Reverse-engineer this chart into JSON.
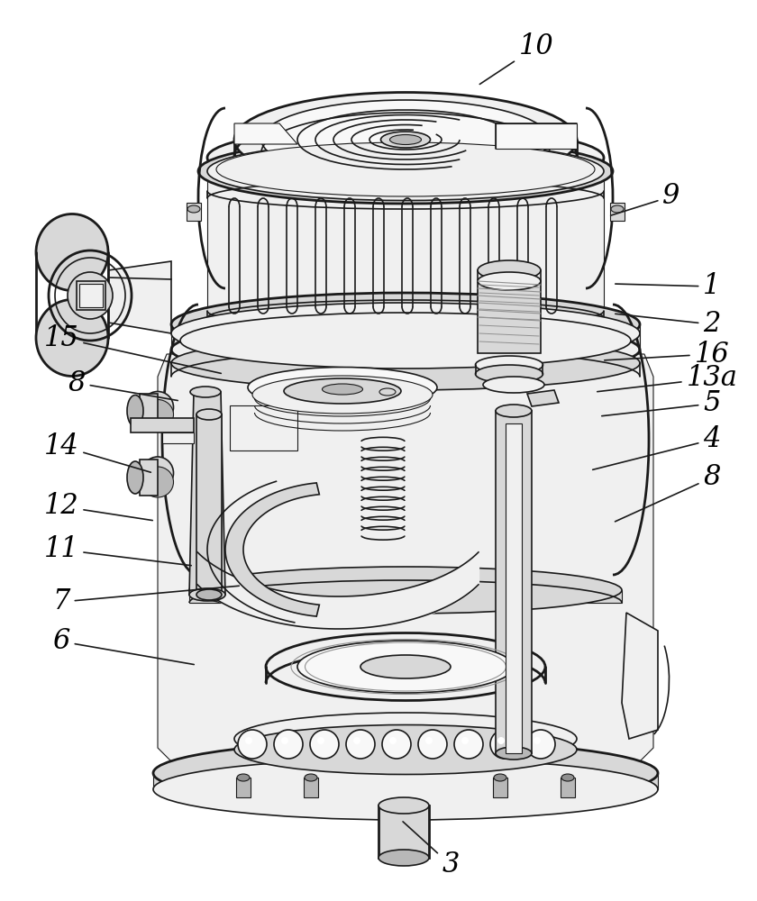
{
  "background_color": "#ffffff",
  "line_color": "#1a1a1a",
  "label_color": "#000000",
  "figsize": [
    8.4,
    10.0
  ],
  "dpi": 100,
  "label_fontsize": 22,
  "arrow_linewidth": 1.2,
  "labels": [
    [
      "10",
      595,
      52,
      530,
      95
    ],
    [
      "9",
      745,
      218,
      675,
      240
    ],
    [
      "1",
      790,
      318,
      680,
      315
    ],
    [
      "2",
      790,
      360,
      680,
      348
    ],
    [
      "16",
      790,
      393,
      668,
      400
    ],
    [
      "13a",
      790,
      420,
      660,
      435
    ],
    [
      "5",
      790,
      448,
      665,
      462
    ],
    [
      "4",
      790,
      488,
      655,
      522
    ],
    [
      "8",
      790,
      530,
      680,
      580
    ],
    [
      "15",
      68,
      375,
      248,
      415
    ],
    [
      "8",
      85,
      425,
      200,
      445
    ],
    [
      "14",
      68,
      495,
      170,
      525
    ],
    [
      "12",
      68,
      562,
      172,
      578
    ],
    [
      "11",
      68,
      610,
      215,
      628
    ],
    [
      "7",
      68,
      668,
      268,
      650
    ],
    [
      "6",
      68,
      712,
      218,
      738
    ],
    [
      "3",
      500,
      960,
      445,
      910
    ]
  ],
  "colors": {
    "c_bg": "#ffffff",
    "c_light": "#f0f0f0",
    "c_mid": "#d8d8d8",
    "c_dark": "#b8b8b8",
    "c_vdark": "#909090",
    "c_black": "#1a1a1a",
    "c_white": "#f8f8f8",
    "c_shadow": "#c0c0c0"
  }
}
